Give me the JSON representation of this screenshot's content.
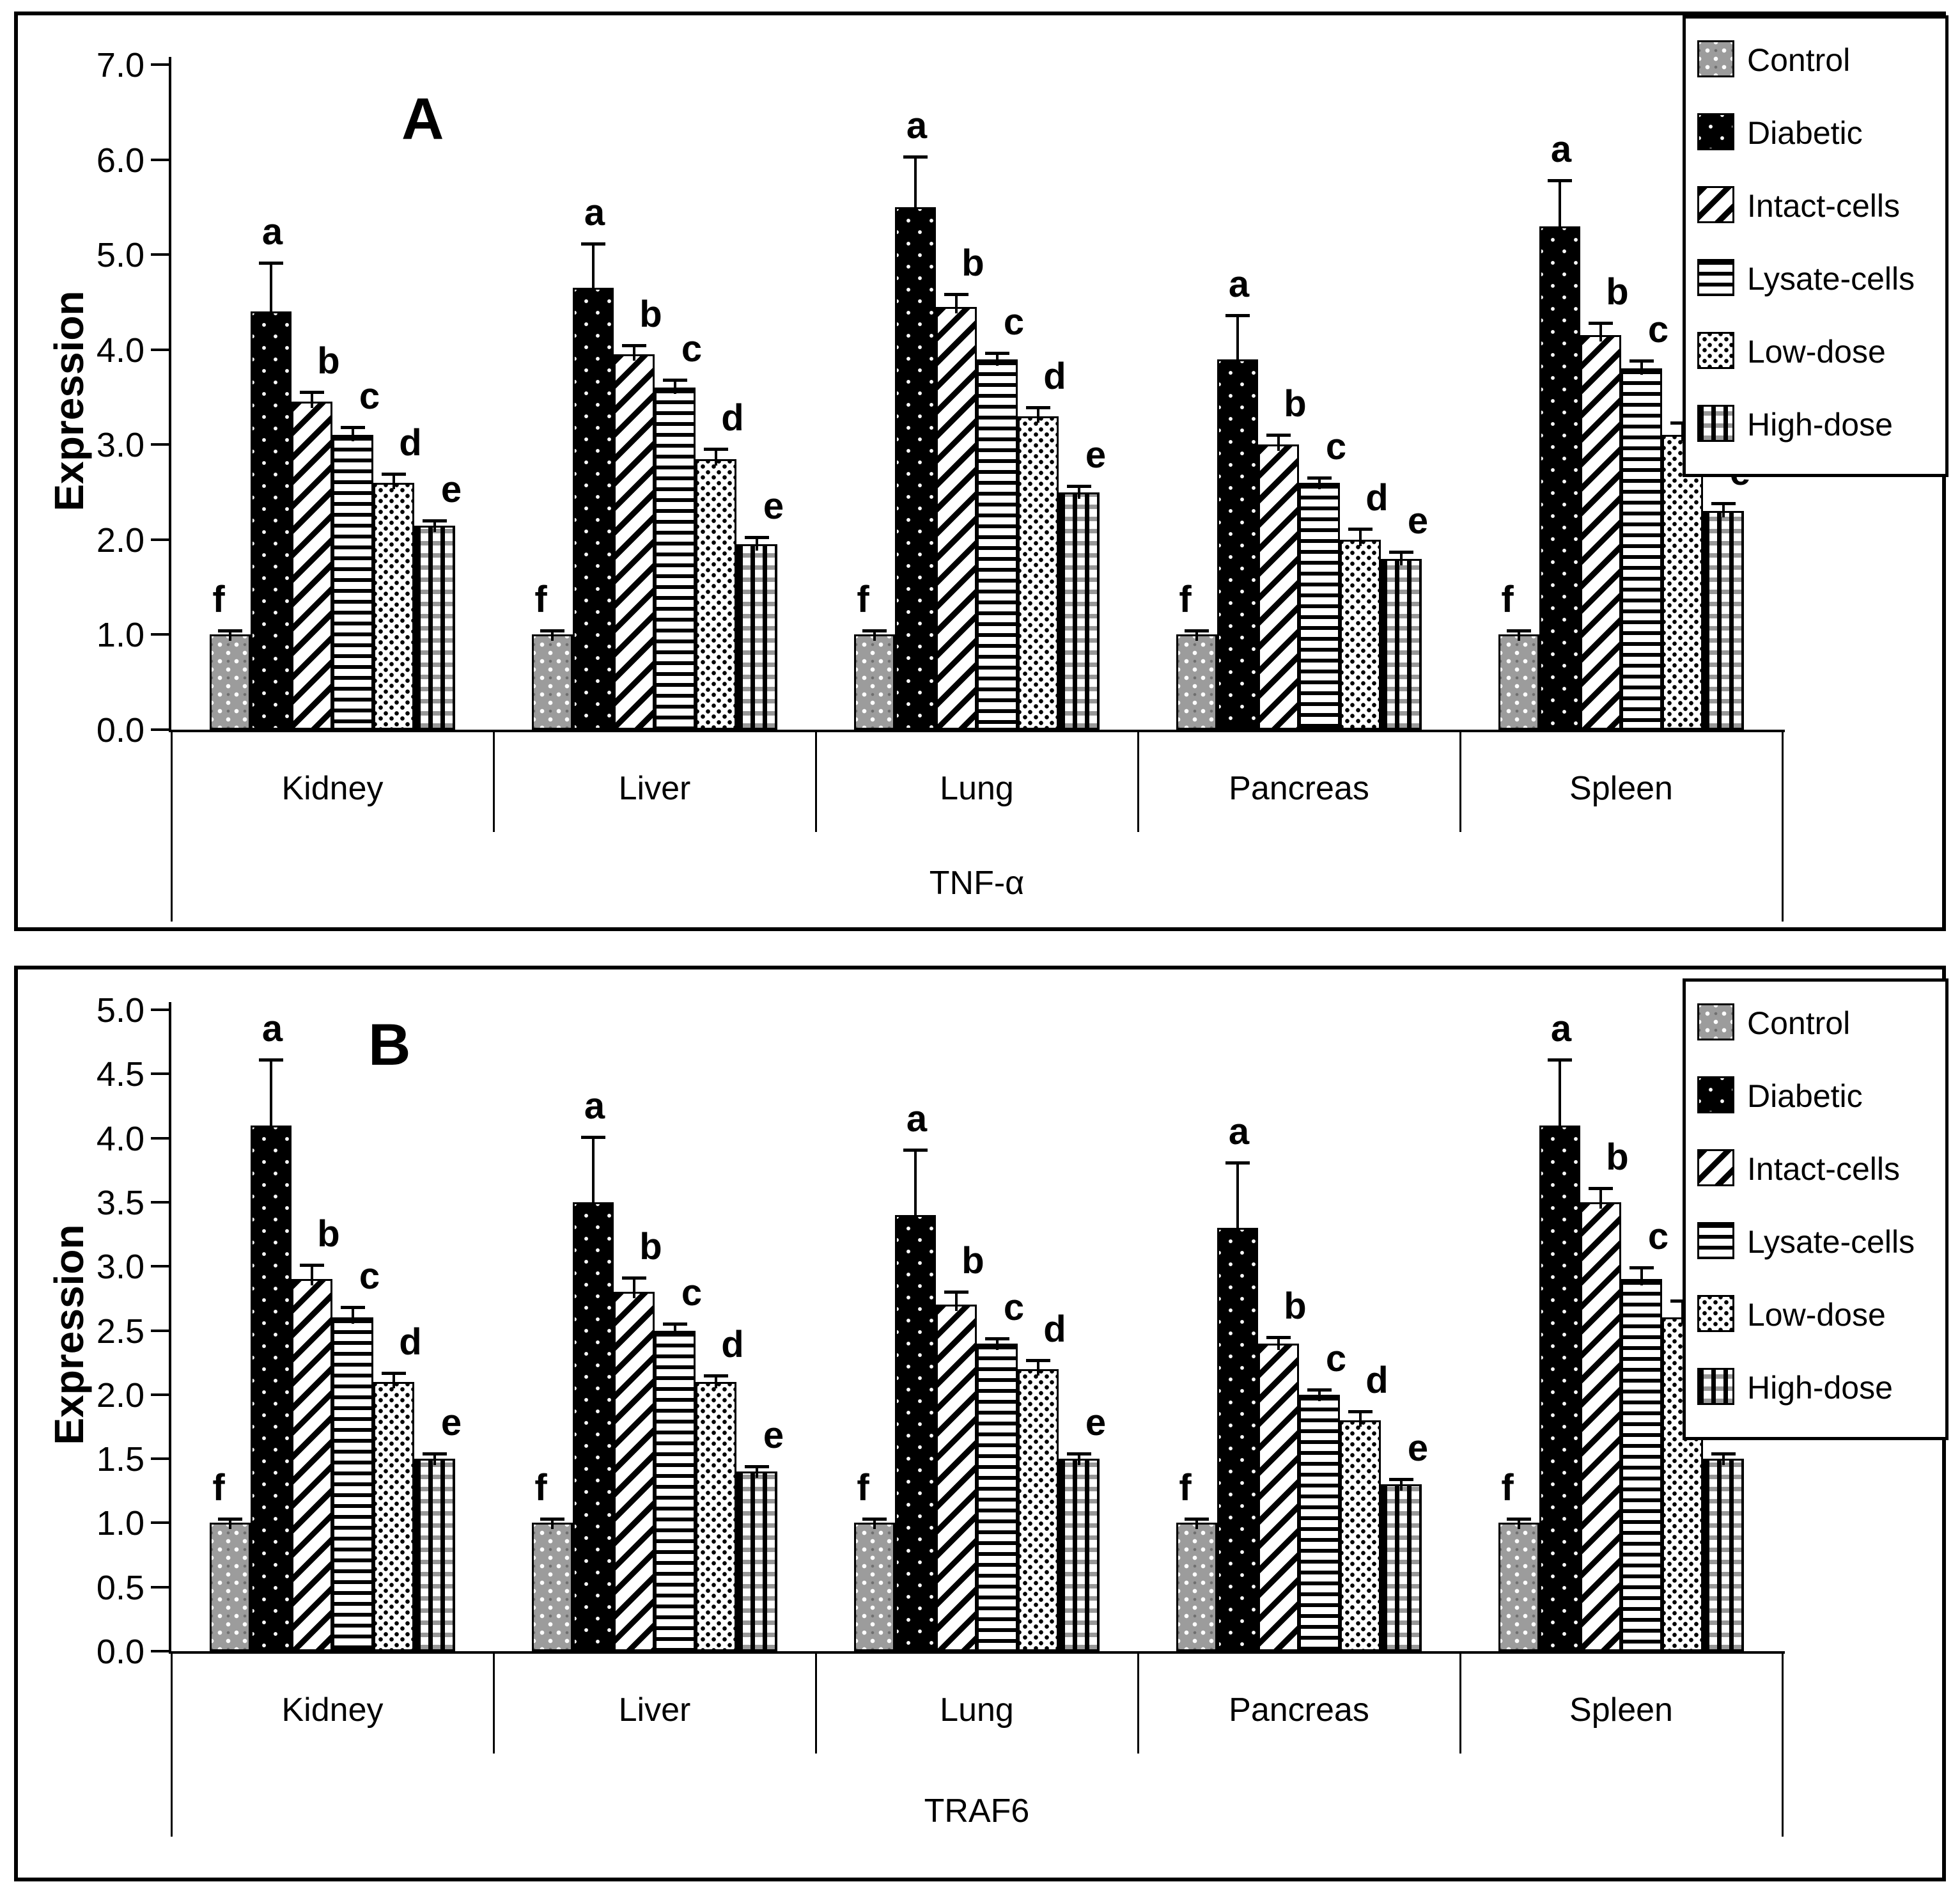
{
  "figure": {
    "panels": [
      "A",
      "B"
    ],
    "background": "#ffffff",
    "ink_color": "#000000"
  },
  "chart_data": [
    {
      "type": "bar",
      "panel_label": "A",
      "ylabel": "Expression",
      "xlabel": "TNF-α",
      "ylim": [
        0,
        7
      ],
      "ytick_step": 1.0,
      "ytick_labels": [
        "0.0",
        "1.0",
        "2.0",
        "3.0",
        "4.0",
        "5.0",
        "6.0",
        "7.0"
      ],
      "grid": false,
      "legend_position": "top-right",
      "categories": [
        "Kidney",
        "Liver",
        "Lung",
        "Pancreas",
        "Spleen"
      ],
      "series": [
        {
          "name": "Control",
          "key": "control",
          "sig_letter": "f",
          "values": [
            1.0,
            1.0,
            1.0,
            1.0,
            1.0
          ],
          "errors": [
            0.03,
            0.03,
            0.03,
            0.03,
            0.03
          ]
        },
        {
          "name": "Diabetic",
          "key": "diabetic",
          "sig_letter": "a",
          "values": [
            4.4,
            4.65,
            5.5,
            3.9,
            5.3
          ],
          "errors": [
            0.5,
            0.45,
            0.52,
            0.45,
            0.47
          ]
        },
        {
          "name": "Intact-cells",
          "key": "intact",
          "sig_letter": "b",
          "values": [
            3.45,
            3.95,
            4.45,
            3.0,
            4.15
          ],
          "errors": [
            0.09,
            0.08,
            0.12,
            0.09,
            0.12
          ]
        },
        {
          "name": "Lysate-cells",
          "key": "lysate",
          "sig_letter": "c",
          "values": [
            3.1,
            3.6,
            3.9,
            2.6,
            3.8
          ],
          "errors": [
            0.07,
            0.07,
            0.05,
            0.04,
            0.07
          ]
        },
        {
          "name": "Low-dose",
          "key": "low",
          "sig_letter": "d",
          "values": [
            2.6,
            2.85,
            3.3,
            2.0,
            3.1
          ],
          "errors": [
            0.08,
            0.09,
            0.08,
            0.1,
            0.12
          ]
        },
        {
          "name": "High-dose",
          "key": "high",
          "sig_letter": "e",
          "values": [
            2.15,
            1.95,
            2.5,
            1.8,
            2.3
          ],
          "errors": [
            0.04,
            0.06,
            0.05,
            0.06,
            0.07
          ]
        }
      ]
    },
    {
      "type": "bar",
      "panel_label": "B",
      "ylabel": "Expression",
      "xlabel": "TRAF6",
      "ylim": [
        0,
        5
      ],
      "ytick_step": 0.5,
      "ytick_labels": [
        "0.0",
        "0.5",
        "1.0",
        "1.5",
        "2.0",
        "2.5",
        "3.0",
        "3.5",
        "4.0",
        "4.5",
        "5.0"
      ],
      "grid": false,
      "legend_position": "top-right",
      "categories": [
        "Kidney",
        "Liver",
        "Lung",
        "Pancreas",
        "Spleen"
      ],
      "series": [
        {
          "name": "Control",
          "key": "control",
          "sig_letter": "f",
          "values": [
            1.0,
            1.0,
            1.0,
            1.0,
            1.0
          ],
          "errors": [
            0.02,
            0.02,
            0.02,
            0.02,
            0.02
          ]
        },
        {
          "name": "Diabetic",
          "key": "diabetic",
          "sig_letter": "a",
          "values": [
            4.1,
            3.5,
            3.4,
            3.3,
            4.1
          ],
          "errors": [
            0.5,
            0.5,
            0.5,
            0.5,
            0.5
          ]
        },
        {
          "name": "Intact-cells",
          "key": "intact",
          "sig_letter": "b",
          "values": [
            2.9,
            2.8,
            2.7,
            2.4,
            3.5
          ],
          "errors": [
            0.1,
            0.1,
            0.09,
            0.04,
            0.1
          ]
        },
        {
          "name": "Lysate-cells",
          "key": "lysate",
          "sig_letter": "c",
          "values": [
            2.6,
            2.5,
            2.4,
            2.0,
            2.9
          ],
          "errors": [
            0.07,
            0.04,
            0.03,
            0.03,
            0.08
          ]
        },
        {
          "name": "Low-dose",
          "key": "low",
          "sig_letter": "d",
          "values": [
            2.1,
            2.1,
            2.2,
            1.8,
            2.6
          ],
          "errors": [
            0.06,
            0.04,
            0.06,
            0.06,
            0.12
          ]
        },
        {
          "name": "High-dose",
          "key": "high",
          "sig_letter": "e",
          "values": [
            1.5,
            1.4,
            1.5,
            1.3,
            1.5
          ],
          "errors": [
            0.03,
            0.03,
            0.03,
            0.03,
            0.03
          ]
        }
      ]
    }
  ]
}
